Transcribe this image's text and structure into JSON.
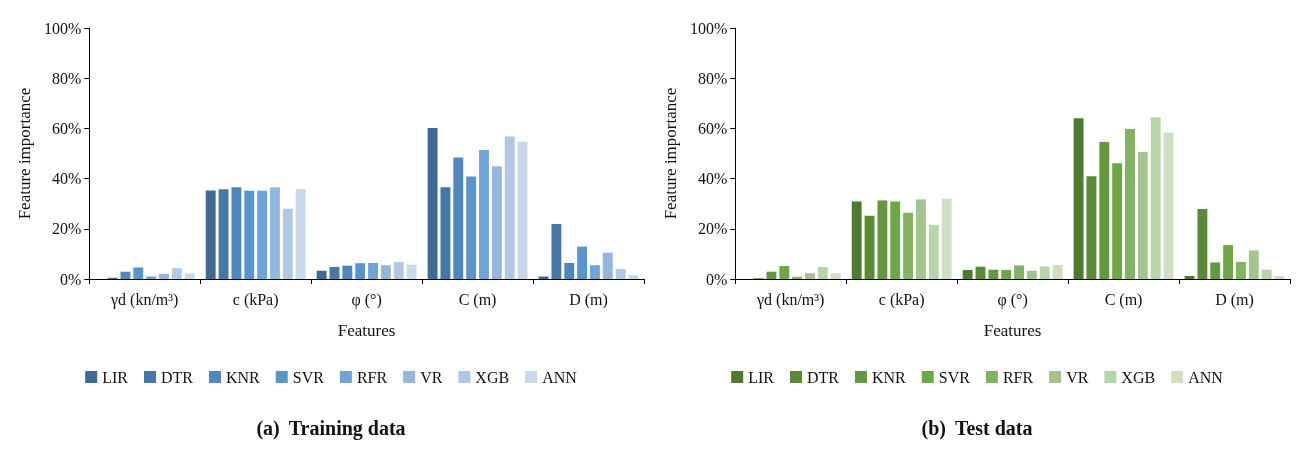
{
  "chart_data": [
    {
      "type": "bar",
      "title": "(a) Training data",
      "xlabel": "Features",
      "ylabel": "Feature importance",
      "categories": [
        "γd (kn/m³)",
        "c (kPa)",
        "φ (°)",
        "C (m)",
        "D (m)"
      ],
      "ylim": [
        0,
        100
      ],
      "yticks": [
        {
          "value": 0,
          "label": "0%"
        },
        {
          "value": 20,
          "label": "20%"
        },
        {
          "value": 40,
          "label": "40%"
        },
        {
          "value": 60,
          "label": "60%"
        },
        {
          "value": 80,
          "label": "80%"
        },
        {
          "value": 100,
          "label": "100%"
        }
      ],
      "grid": false,
      "legend": "bottom",
      "series": [
        {
          "name": "LIR",
          "color": "#3e6a96",
          "values": [
            0,
            35.3,
            3.3,
            60.2,
            1.0
          ]
        },
        {
          "name": "DTR",
          "color": "#4577a8",
          "values": [
            0.5,
            35.8,
            4.8,
            36.6,
            21.9
          ]
        },
        {
          "name": "KNR",
          "color": "#4d87bd",
          "values": [
            2.9,
            36.6,
            5.3,
            48.4,
            6.4
          ]
        },
        {
          "name": "SVR",
          "color": "#5795cc",
          "values": [
            4.6,
            35.2,
            6.3,
            40.8,
            12.9
          ]
        },
        {
          "name": "RFR",
          "color": "#70a4d9",
          "values": [
            1.0,
            35.2,
            6.4,
            51.4,
            5.5
          ]
        },
        {
          "name": "VR",
          "color": "#96b7dd",
          "values": [
            2.1,
            36.6,
            5.5,
            44.9,
            10.5
          ]
        },
        {
          "name": "XGB",
          "color": "#b1c8e4",
          "values": [
            4.3,
            28.0,
            6.8,
            56.8,
            4.0
          ]
        },
        {
          "name": "ANN",
          "color": "#c9d8ec",
          "values": [
            2.2,
            35.9,
            5.7,
            54.7,
            1.5
          ]
        }
      ]
    },
    {
      "type": "bar",
      "title": "(b) Test data",
      "xlabel": "Features",
      "ylabel": "Feature importance",
      "categories": [
        "γd (kn/m³)",
        "c (kPa)",
        "φ (°)",
        "C (m)",
        "D (m)"
      ],
      "ylim": [
        0,
        100
      ],
      "yticks": [
        {
          "value": 0,
          "label": "0%"
        },
        {
          "value": 20,
          "label": "20%"
        },
        {
          "value": 40,
          "label": "40%"
        },
        {
          "value": 60,
          "label": "60%"
        },
        {
          "value": 80,
          "label": "80%"
        },
        {
          "value": 100,
          "label": "100%"
        }
      ],
      "grid": false,
      "legend": "bottom",
      "series": [
        {
          "name": "LIR",
          "color": "#4e7a2f",
          "values": [
            0,
            30.9,
            3.6,
            64.0,
            1.2
          ]
        },
        {
          "name": "DTR",
          "color": "#5a8a36",
          "values": [
            0.3,
            25.2,
            4.9,
            40.9,
            27.9
          ]
        },
        {
          "name": "KNR",
          "color": "#63993d",
          "values": [
            2.9,
            31.3,
            3.7,
            54.6,
            6.6
          ]
        },
        {
          "name": "SVR",
          "color": "#6ea743",
          "values": [
            5.2,
            30.9,
            3.6,
            46.1,
            13.5
          ]
        },
        {
          "name": "RFR",
          "color": "#83b264",
          "values": [
            0.9,
            26.4,
            5.4,
            59.8,
            6.8
          ]
        },
        {
          "name": "VR",
          "color": "#a3c48e",
          "values": [
            2.3,
            31.7,
            3.3,
            50.6,
            11.4
          ]
        },
        {
          "name": "XGB",
          "color": "#b8d4a9",
          "values": [
            4.8,
            21.6,
            5.0,
            64.4,
            3.7
          ]
        },
        {
          "name": "ANN",
          "color": "#cfdfc3",
          "values": [
            2.3,
            32.0,
            5.6,
            58.4,
            1.2
          ]
        }
      ]
    }
  ]
}
